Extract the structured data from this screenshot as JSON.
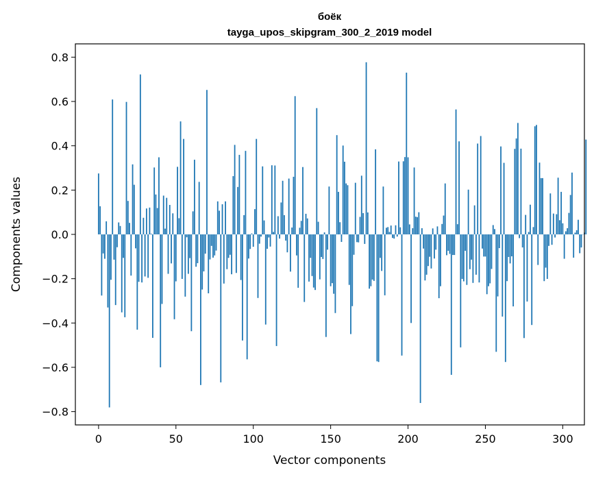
{
  "chart_data": {
    "type": "bar",
    "title": "боёк",
    "subtitle": "tayga_upos_skipgram_300_2_2019 model",
    "xlabel": "Vector components",
    "ylabel": "Components values",
    "xlim": [
      -15,
      314
    ],
    "ylim": [
      -0.86,
      0.86
    ],
    "xticks": [
      0,
      50,
      100,
      150,
      200,
      250,
      300
    ],
    "yticks": [
      -0.8,
      -0.6,
      -0.4,
      -0.2,
      0.0,
      0.2,
      0.4,
      0.6,
      0.8
    ],
    "ytick_labels": [
      "−0.8",
      "−0.6",
      "−0.4",
      "−0.2",
      "0.0",
      "0.2",
      "0.4",
      "0.6",
      "0.8"
    ],
    "grid": false,
    "bar_color": "#1f77b4",
    "values": [
      0.275,
      0.127,
      -0.276,
      -0.086,
      -0.11,
      0.059,
      -0.33,
      -0.781,
      -0.205,
      0.609,
      -0.114,
      -0.319,
      -0.058,
      0.054,
      0.038,
      -0.352,
      -0.106,
      -0.374,
      0.598,
      0.151,
      0.052,
      -0.186,
      0.316,
      0.224,
      -0.063,
      -0.43,
      -0.214,
      0.722,
      -0.217,
      0.075,
      -0.19,
      0.117,
      -0.196,
      0.121,
      0.003,
      -0.467,
      0.302,
      0.18,
      0.119,
      0.348,
      -0.6,
      -0.314,
      0.175,
      0.026,
      0.165,
      -0.178,
      0.133,
      -0.131,
      0.095,
      -0.383,
      -0.212,
      0.305,
      0.073,
      0.51,
      -0.201,
      0.431,
      -0.281,
      -0.013,
      -0.178,
      -0.107,
      -0.437,
      0.104,
      0.337,
      -0.146,
      -0.13,
      0.237,
      -0.68,
      -0.249,
      -0.167,
      -0.087,
      0.652,
      -0.266,
      -0.113,
      -0.052,
      -0.105,
      -0.095,
      -0.073,
      0.149,
      0.107,
      -0.668,
      0.136,
      -0.222,
      0.149,
      -0.157,
      -0.106,
      -0.092,
      -0.18,
      0.263,
      0.404,
      -0.174,
      0.214,
      0.359,
      -0.206,
      -0.479,
      0.087,
      0.377,
      -0.564,
      -0.109,
      -0.066,
      0.004,
      -0.056,
      0.114,
      0.431,
      -0.287,
      -0.042,
      -0.01,
      0.307,
      0.063,
      -0.407,
      -0.065,
      -0.014,
      -0.055,
      0.312,
      0.011,
      0.311,
      -0.504,
      0.082,
      -0.019,
      0.144,
      0.242,
      0.087,
      -0.028,
      -0.081,
      0.252,
      -0.168,
      0.031,
      0.26,
      0.624,
      -0.095,
      -0.241,
      0.03,
      0.061,
      0.304,
      -0.305,
      0.093,
      0.072,
      -0.213,
      -0.106,
      -0.188,
      -0.24,
      -0.251,
      0.57,
      0.057,
      -0.203,
      -0.102,
      -0.111,
      0.009,
      -0.463,
      -0.069,
      0.216,
      -0.234,
      -0.22,
      -0.268,
      -0.355,
      0.448,
      0.192,
      0.055,
      -0.034,
      0.401,
      0.328,
      0.23,
      0.222,
      -0.228,
      -0.45,
      -0.324,
      -0.092,
      0.233,
      -0.035,
      -0.036,
      0.079,
      0.265,
      0.096,
      -0.043,
      0.777,
      0.099,
      -0.245,
      -0.234,
      -0.204,
      -0.21,
      0.384,
      -0.573,
      -0.576,
      -0.106,
      -0.165,
      0.216,
      -0.275,
      0.03,
      0.033,
      0.011,
      0.04,
      -0.016,
      -0.019,
      0.041,
      -0.01,
      0.329,
      0.032,
      -0.547,
      0.33,
      0.349,
      0.73,
      0.348,
      0.045,
      -0.4,
      0.028,
      0.302,
      0.08,
      0.078,
      0.1,
      -0.761,
      0.028,
      -0.064,
      -0.208,
      -0.182,
      -0.143,
      -0.101,
      -0.154,
      0.027,
      -0.109,
      -0.069,
      0.036,
      -0.288,
      -0.234,
      0.047,
      0.085,
      0.23,
      -0.094,
      -0.074,
      -0.088,
      -0.634,
      -0.093,
      -0.093,
      0.564,
      0.046,
      0.42,
      -0.51,
      -0.201,
      -0.212,
      -0.074,
      -0.228,
      0.202,
      -0.157,
      -0.114,
      -0.219,
      0.131,
      -0.182,
      0.41,
      -0.217,
      0.444,
      -0.064,
      -0.1,
      -0.1,
      -0.27,
      -0.234,
      -0.221,
      -0.156,
      0.042,
      0.024,
      -0.53,
      -0.28,
      -0.062,
      0.397,
      -0.371,
      0.323,
      -0.576,
      -0.211,
      -0.102,
      -0.131,
      -0.099,
      -0.325,
      0.386,
      0.433,
      0.503,
      -0.017,
      0.387,
      -0.059,
      -0.468,
      0.088,
      -0.303,
      0.011,
      0.134,
      -0.409,
      0.033,
      0.488,
      0.494,
      -0.138,
      0.324,
      0.254,
      0.254,
      -0.211,
      -0.15,
      -0.201,
      -0.052,
      0.185,
      -0.047,
      0.094,
      -0.014,
      0.091,
      0.256,
      0.064,
      0.192,
      0.05,
      -0.11,
      0.014,
      0.028,
      0.097,
      0.178,
      0.279,
      -0.105,
      0.008,
      0.019,
      0.066,
      -0.085,
      -0.059,
      -0.001,
      0.008,
      0.428
    ]
  }
}
